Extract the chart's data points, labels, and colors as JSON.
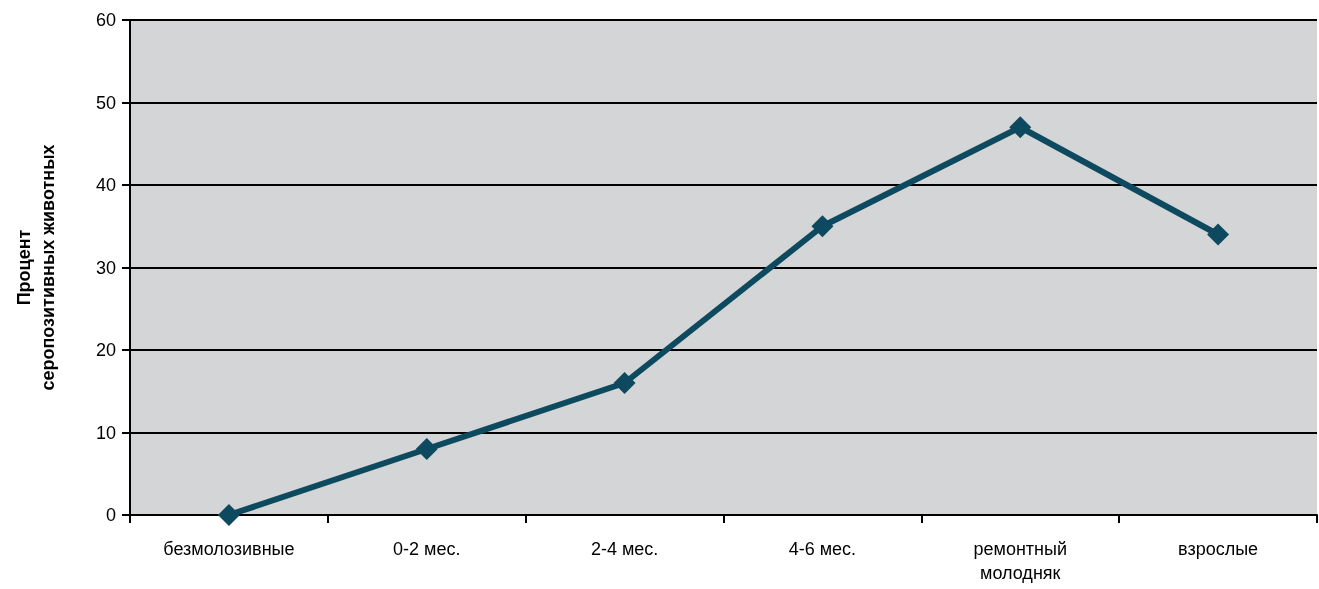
{
  "chart_data": {
    "type": "line",
    "ylabel": "Процент серопозитивных животных",
    "categories": [
      "безмолозивные",
      "0-2 мес.",
      "2-4 мес.",
      "4-6 мес.",
      "ремонтный молодняк",
      "взрослые"
    ],
    "series": [
      {
        "color": "#0e4a5f",
        "values": [
          0,
          8,
          16,
          35,
          47,
          34
        ]
      }
    ],
    "ylim": [
      0,
      60
    ],
    "yticks": [
      0,
      10,
      20,
      30,
      40,
      50,
      60
    ],
    "grid": "y",
    "marker": "diamond",
    "line_style": "solid"
  }
}
